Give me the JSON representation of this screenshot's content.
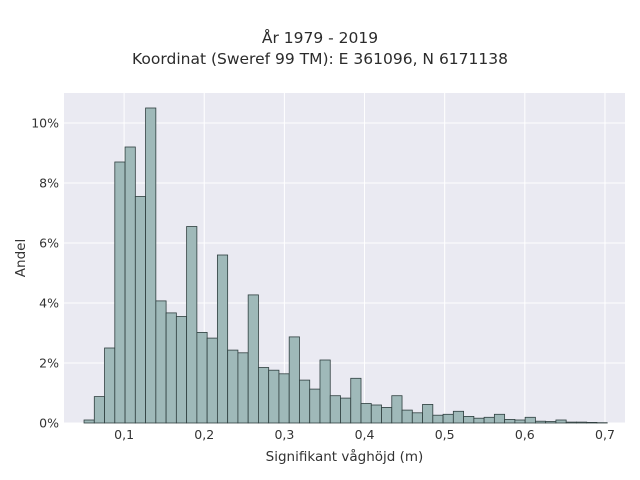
{
  "chart_data": {
    "type": "bar",
    "title": "År 1979 - 2019",
    "subtitle": "Koordinat (Sweref 99 TM): E 361096, N 6171138",
    "xlabel": "Signifikant våghöjd (m)",
    "ylabel": "Andel",
    "xlim": [
      0.025,
      0.725
    ],
    "ylim": [
      0,
      11
    ],
    "grid": true,
    "x_ticks": [
      0.1,
      0.2,
      0.3,
      0.4,
      0.5,
      0.6,
      0.7
    ],
    "x_tick_labels": [
      "0,1",
      "0,2",
      "0,3",
      "0,4",
      "0,5",
      "0,6",
      "0,7"
    ],
    "y_ticks": [
      0,
      2,
      4,
      6,
      8,
      10
    ],
    "y_tick_labels": [
      "0%",
      "2%",
      "4%",
      "6%",
      "8%",
      "10%"
    ],
    "bin_start": 0.05,
    "bin_width": 0.0128,
    "values": [
      0.1,
      0.88,
      2.5,
      8.7,
      9.2,
      7.55,
      10.5,
      4.07,
      3.67,
      3.55,
      6.55,
      3.02,
      2.83,
      5.6,
      2.43,
      2.34,
      4.27,
      1.85,
      1.76,
      1.64,
      2.87,
      1.43,
      1.13,
      2.1,
      0.91,
      0.83,
      1.49,
      0.65,
      0.6,
      0.52,
      0.91,
      0.43,
      0.34,
      0.62,
      0.26,
      0.29,
      0.39,
      0.22,
      0.16,
      0.19,
      0.29,
      0.12,
      0.1,
      0.19,
      0.06,
      0.05,
      0.1,
      0.03,
      0.03,
      0.02,
      0.01
    ],
    "colors": {
      "bar_fill": "#9fb9b9",
      "bar_stroke": "#2f3f3f",
      "plot_bg": "#eaeaf2",
      "grid": "#ffffff"
    }
  }
}
